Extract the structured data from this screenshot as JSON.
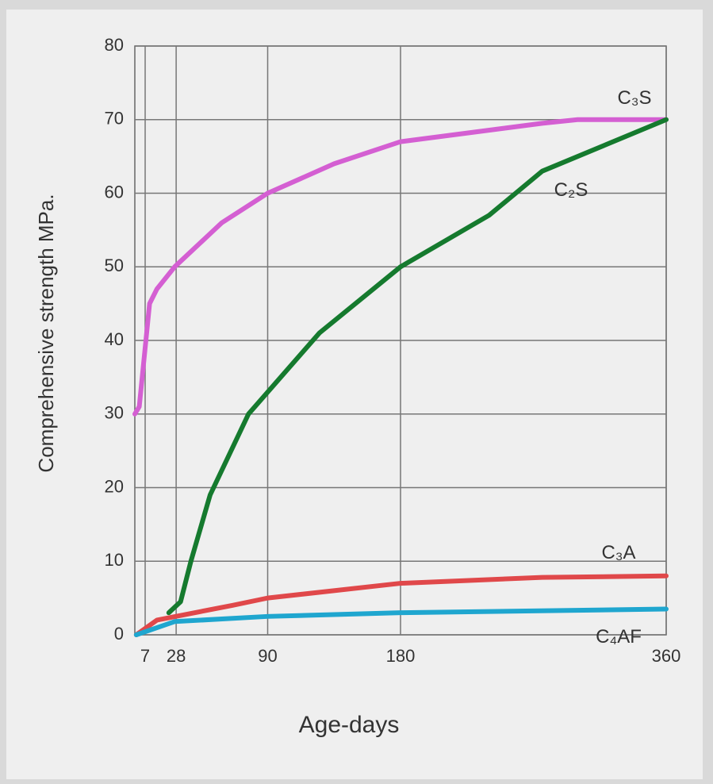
{
  "chart_data": {
    "type": "line",
    "x_label": "Age-days",
    "y_label": "Comprehensive strength MPa.",
    "xlim": [
      0,
      360
    ],
    "xticks": [
      7,
      28,
      90,
      180,
      360
    ],
    "ylim": [
      0,
      80
    ],
    "yticks": [
      0,
      10,
      20,
      30,
      40,
      50,
      60,
      70,
      80
    ],
    "grid": true,
    "series": [
      {
        "name": "C₃S",
        "color": "#d45fd2",
        "x": [
          0,
          3,
          10,
          15,
          27,
          59,
          90,
          135,
          180,
          276,
          300,
          360
        ],
        "values": [
          30,
          31,
          45,
          47,
          50,
          56,
          60,
          64,
          67,
          69.5,
          70,
          70
        ]
      },
      {
        "name": "C₂S",
        "color": "#157a2e",
        "x": [
          23,
          31,
          38,
          51,
          77,
          125,
          180,
          240,
          276,
          360
        ],
        "values": [
          3,
          4.5,
          10,
          19,
          30,
          41,
          50,
          57,
          63,
          70
        ]
      },
      {
        "name": "C₃A",
        "color": "#e0484a",
        "x": [
          1,
          15,
          66,
          90,
          180,
          276,
          360
        ],
        "values": [
          0,
          2,
          4,
          5,
          7,
          7.8,
          8
        ]
      },
      {
        "name": "C₄AF",
        "color": "#1fa6cf",
        "x": [
          1,
          27,
          90,
          180,
          360
        ],
        "values": [
          0,
          1.8,
          2.5,
          3,
          3.5
        ]
      }
    ]
  }
}
